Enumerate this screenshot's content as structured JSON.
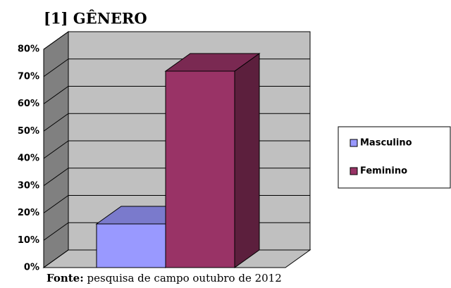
{
  "chart_data": {
    "type": "bar3d",
    "title": "[1] GÊNERO",
    "source_label": "Fonte:",
    "source": "pesquisa de campo outubro de 2012",
    "series": [
      {
        "name": "Masculino",
        "color": "#9999ff",
        "values": [
          16
        ]
      },
      {
        "name": "Feminino",
        "color": "#993366",
        "values": [
          72
        ]
      }
    ],
    "ylim": [
      0,
      80
    ],
    "yticks": [
      {
        "value": 0,
        "label": "0%"
      },
      {
        "value": 10,
        "label": "10%"
      },
      {
        "value": 20,
        "label": "20%"
      },
      {
        "value": 30,
        "label": "30%"
      },
      {
        "value": 40,
        "label": "40%"
      },
      {
        "value": 50,
        "label": "50%"
      },
      {
        "value": 60,
        "label": "60%"
      },
      {
        "value": 70,
        "label": "70%"
      },
      {
        "value": 80,
        "label": "80%"
      }
    ],
    "grid": true,
    "legend": "right"
  }
}
